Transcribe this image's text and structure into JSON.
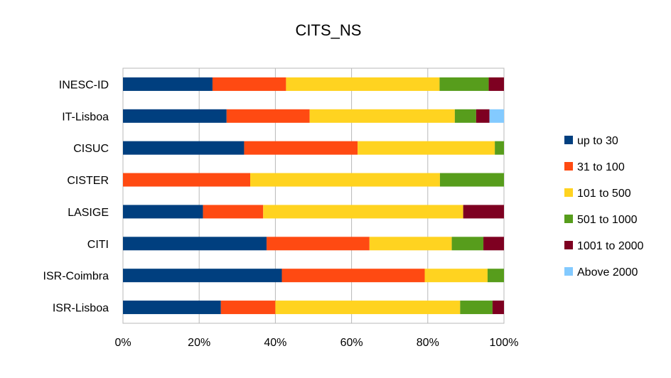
{
  "chart_data": {
    "type": "bar",
    "orientation": "horizontal",
    "stacked": "percent",
    "title": "CITS_NS",
    "categories": [
      "INESC-ID",
      "IT-Lisboa",
      "CISUC",
      "CISTER",
      "LASIGE",
      "CITI",
      "ISR-Coimbra",
      "ISR-Lisboa"
    ],
    "xlim": [
      0,
      100
    ],
    "xticks": [
      "0%",
      "20%",
      "40%",
      "60%",
      "80%",
      "100%"
    ],
    "xlabel": "",
    "ylabel": "",
    "grid": true,
    "legend_position": "right",
    "series": [
      {
        "name": "up to 30",
        "color": "#003F7F",
        "values": [
          23.5,
          27.2,
          31.8,
          0.0,
          21.0,
          37.7,
          41.7,
          25.7
        ]
      },
      {
        "name": "31 to 100",
        "color": "#FF4A12",
        "values": [
          19.3,
          21.8,
          29.8,
          33.4,
          15.8,
          27.0,
          37.5,
          14.3
        ]
      },
      {
        "name": "101 to 500",
        "color": "#FFD320",
        "values": [
          40.3,
          38.1,
          36.0,
          49.8,
          52.5,
          21.6,
          16.5,
          48.5
        ]
      },
      {
        "name": "501 to 1000",
        "color": "#579D1C",
        "values": [
          12.9,
          5.6,
          2.4,
          16.8,
          0.0,
          8.3,
          4.3,
          8.5
        ]
      },
      {
        "name": "1001 to 2000",
        "color": "#7E0021",
        "values": [
          4.0,
          3.5,
          0.0,
          0.0,
          10.7,
          5.4,
          0.0,
          3.0
        ]
      },
      {
        "name": "Above 2000",
        "color": "#83CAFF",
        "values": [
          0.0,
          3.8,
          0.0,
          0.0,
          0.0,
          0.0,
          0.0,
          0.0
        ]
      }
    ]
  }
}
